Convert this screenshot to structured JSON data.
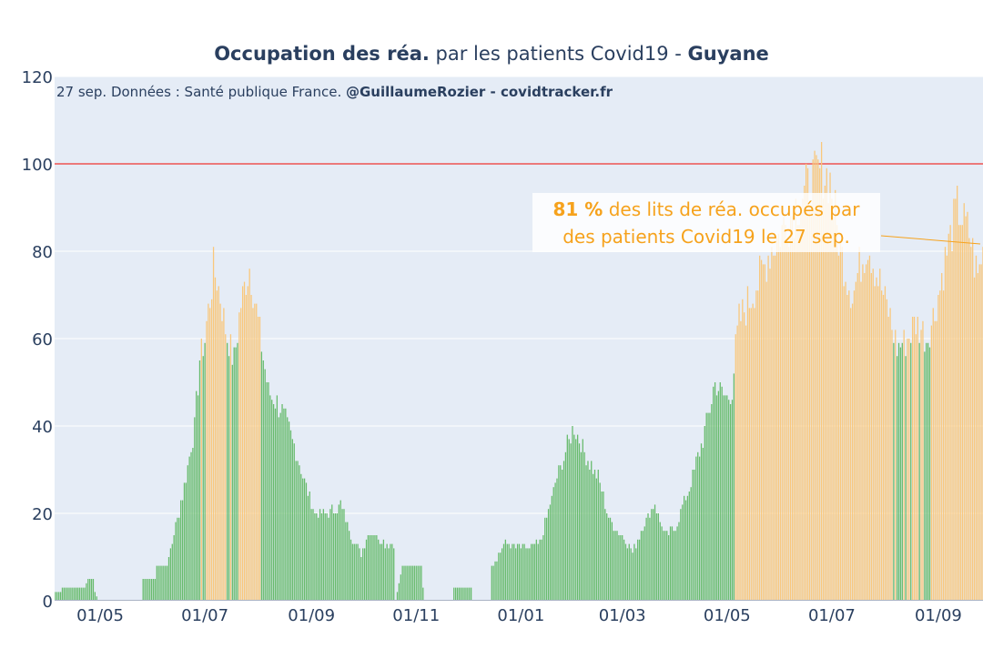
{
  "chart_data": {
    "type": "bar",
    "title": {
      "part1_bold": "Occupation des réa.",
      "part2": " par les patients Covid19 - ",
      "part3_bold": "Guyane"
    },
    "source": {
      "text": "27 sep. Données : Santé publique France. ",
      "author_bold": "@GuillaumeRozier - covidtracker.fr"
    },
    "annotation": {
      "value": "81  %",
      "line1_rest": " des lits de réa. occupés par",
      "line2": "des patients Covid19 le 27 sep."
    },
    "xlabel": "",
    "ylabel": "",
    "ylim": [
      0,
      120
    ],
    "yticks": [
      0,
      20,
      40,
      60,
      80,
      100,
      120
    ],
    "threshold": 100,
    "threshold_color": "#ef5350",
    "high_color": "#f9c77b",
    "low_color": "#67bb6c",
    "high_threshold": 60,
    "x_start": "2020-04-05",
    "x_end": "2021-09-27",
    "xticks": [
      {
        "date": "2020-05-01",
        "label": "01/05"
      },
      {
        "date": "2020-07-01",
        "label": "01/07"
      },
      {
        "date": "2020-09-01",
        "label": "01/09"
      },
      {
        "date": "2020-11-01",
        "label": "01/11"
      },
      {
        "date": "2021-01-01",
        "label": "01/01"
      },
      {
        "date": "2021-03-01",
        "label": "01/03"
      },
      {
        "date": "2021-05-01",
        "label": "01/05"
      },
      {
        "date": "2021-07-01",
        "label": "01/07"
      },
      {
        "date": "2021-09-01",
        "label": "01/09"
      }
    ],
    "anchors": [
      [
        "2020-03-25",
        0
      ],
      [
        "2020-04-12",
        3
      ],
      [
        "2020-04-22",
        3
      ],
      [
        "2020-04-24",
        5
      ],
      [
        "2020-04-27",
        5
      ],
      [
        "2020-04-28",
        2
      ],
      [
        "2020-04-30",
        0
      ],
      [
        "2020-05-25",
        0
      ],
      [
        "2020-05-26",
        5
      ],
      [
        "2020-06-02",
        5
      ],
      [
        "2020-06-03",
        8
      ],
      [
        "2020-06-09",
        8
      ],
      [
        "2020-06-20",
        28
      ],
      [
        "2020-06-25",
        40
      ],
      [
        "2020-06-28",
        55
      ],
      [
        "2020-07-01",
        60
      ],
      [
        "2020-07-06",
        76
      ],
      [
        "2020-07-09",
        72
      ],
      [
        "2020-07-13",
        62
      ],
      [
        "2020-07-18",
        55
      ],
      [
        "2020-07-22",
        68
      ],
      [
        "2020-07-27",
        77
      ],
      [
        "2020-07-31",
        66
      ],
      [
        "2020-08-03",
        58
      ],
      [
        "2020-08-07",
        48
      ],
      [
        "2020-08-14",
        44
      ],
      [
        "2020-08-20",
        38
      ],
      [
        "2020-08-26",
        30
      ],
      [
        "2020-09-03",
        20
      ],
      [
        "2020-09-10",
        20
      ],
      [
        "2020-09-18",
        22
      ],
      [
        "2020-09-25",
        14
      ],
      [
        "2020-09-30",
        11
      ],
      [
        "2020-10-05",
        16
      ],
      [
        "2020-10-14",
        13
      ],
      [
        "2020-10-19",
        13
      ],
      [
        "2020-10-20",
        0
      ],
      [
        "2020-10-24",
        8
      ],
      [
        "2020-11-04",
        8
      ],
      [
        "2020-11-05",
        3
      ],
      [
        "2020-11-06",
        0
      ],
      [
        "2020-11-22",
        0
      ],
      [
        "2020-11-23",
        3
      ],
      [
        "2020-12-03",
        3
      ],
      [
        "2020-12-04",
        0
      ],
      [
        "2020-12-14",
        0
      ],
      [
        "2020-12-15",
        8
      ],
      [
        "2020-12-22",
        13
      ],
      [
        "2021-01-05",
        12
      ],
      [
        "2021-01-12",
        13
      ],
      [
        "2021-01-22",
        28
      ],
      [
        "2021-02-01",
        40
      ],
      [
        "2021-02-08",
        33
      ],
      [
        "2021-02-15",
        28
      ],
      [
        "2021-02-22",
        18
      ],
      [
        "2021-03-01",
        15
      ],
      [
        "2021-03-07",
        11
      ],
      [
        "2021-03-13",
        17
      ],
      [
        "2021-03-20",
        22
      ],
      [
        "2021-03-26",
        15
      ],
      [
        "2021-04-01",
        17
      ],
      [
        "2021-04-10",
        27
      ],
      [
        "2021-04-17",
        37
      ],
      [
        "2021-04-24",
        50
      ],
      [
        "2021-05-01",
        46
      ],
      [
        "2021-05-04",
        48
      ],
      [
        "2021-05-06",
        58
      ],
      [
        "2021-05-08",
        64
      ],
      [
        "2021-05-18",
        72
      ],
      [
        "2021-05-26",
        80
      ],
      [
        "2021-06-05",
        87
      ],
      [
        "2021-06-15",
        93
      ],
      [
        "2021-06-25",
        99
      ],
      [
        "2021-06-30",
        96
      ],
      [
        "2021-07-06",
        80
      ],
      [
        "2021-07-13",
        70
      ],
      [
        "2021-07-17",
        76
      ],
      [
        "2021-07-22",
        82
      ],
      [
        "2021-07-28",
        74
      ],
      [
        "2021-08-03",
        66
      ],
      [
        "2021-08-08",
        58
      ],
      [
        "2021-08-14",
        60
      ],
      [
        "2021-08-19",
        64
      ],
      [
        "2021-08-25",
        60
      ],
      [
        "2021-08-30",
        66
      ],
      [
        "2021-09-05",
        78
      ],
      [
        "2021-09-12",
        90
      ],
      [
        "2021-09-19",
        84
      ],
      [
        "2021-09-24",
        74
      ],
      [
        "2021-09-27",
        81
      ]
    ]
  }
}
